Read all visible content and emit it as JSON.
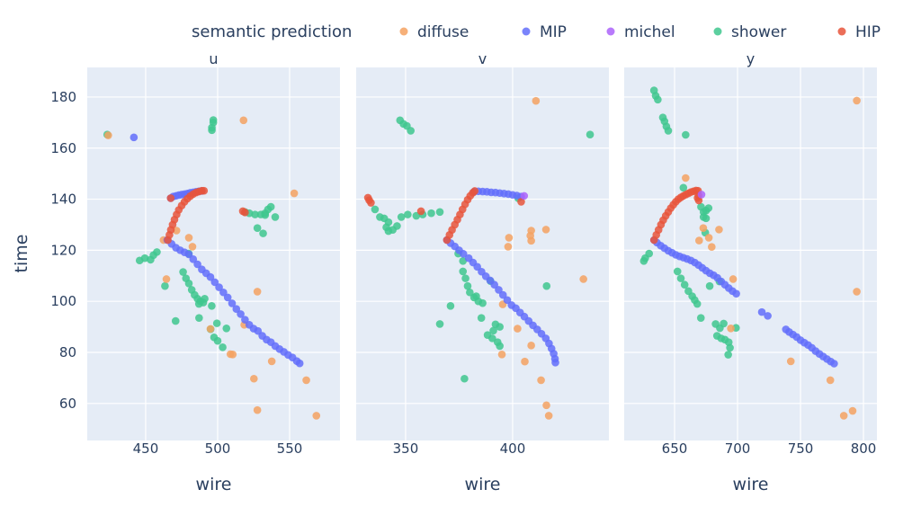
{
  "chart_data": {
    "type": "scatter",
    "legend": {
      "title": "semantic prediction",
      "placement": "top",
      "entries": [
        {
          "name": "diffuse",
          "color": "#F4A261"
        },
        {
          "name": "MIP",
          "color": "#636EFA"
        },
        {
          "name": "michel",
          "color": "#AB63FA"
        },
        {
          "name": "shower",
          "color": "#3FC78E"
        },
        {
          "name": "HIP",
          "color": "#E8553B"
        }
      ]
    },
    "ylabel": "time",
    "ylim": [
      45.5,
      191.6
    ],
    "yticks": [
      60,
      80,
      100,
      120,
      140,
      160,
      180
    ],
    "grid": true,
    "subplots": [
      {
        "title": "u",
        "xlabel": "wire",
        "xlim": [
          409.4,
          585
        ],
        "xticks": [
          450,
          500,
          550
        ],
        "series": {
          "diffuse": {
            "x": [
              424,
              518,
              553.2,
              471.4,
              480,
              482.5,
              462.4,
              464.4,
              495,
              518.5,
              508.9,
              510.5,
              527.6,
              537.6,
              525.2,
              561.6,
              527.6,
              568.6
            ],
            "y": [
              165,
              170.9,
              142.3,
              127.7,
              124.9,
              121.4,
              124,
              108.7,
              89.2,
              90.8,
              79.3,
              79.2,
              103.8,
              76.5,
              69.7,
              69.1,
              57.4,
              55.2
            ]
          },
          "MIP": {
            "x": [
              441.8,
              465,
              468,
              471,
              474,
              477,
              480,
              483,
              486,
              489,
              492,
              495,
              498,
              501,
              504,
              507,
              510,
              513,
              516,
              519,
              522,
              525,
              528,
              531,
              534,
              537,
              540,
              543,
              546,
              549,
              552,
              555,
              557,
              467.4,
              469,
              471,
              473,
              475,
              477,
              479,
              481,
              483,
              485,
              487,
              489
            ],
            "y": [
              164.2,
              124,
              122.5,
              121,
              120,
              119.2,
              118.4,
              116.5,
              114.5,
              112.5,
              111,
              109.5,
              107.5,
              105.5,
              103.5,
              101.5,
              99.2,
              97,
              95,
              92.8,
              90.8,
              89.3,
              88.4,
              86.5,
              85,
              84,
              82.5,
              81.3,
              80.2,
              79,
              78,
              76.6,
              75.7,
              140.4,
              141,
              141.3,
              141.6,
              141.8,
              142,
              142.2,
              142.5,
              142.7,
              142.9,
              143.1,
              143.2
            ]
          },
          "michel": {
            "x": [],
            "y": []
          },
          "shower": {
            "x": [
              423.3,
              497,
              497,
              496,
              496,
              519,
              522,
              526,
              530,
              533,
              535,
              537,
              540,
              533,
              527.6,
              531.6,
              479.9,
              445.8,
              449.4,
              453.4,
              455.4,
              457.8,
              463.4,
              476,
              478,
              480,
              482,
              484,
              486,
              488,
              490,
              491,
              487,
              495.9,
              470.8,
              487.1,
              499.5,
              506.1,
              495.1,
              497.5,
              500,
              503.5
            ],
            "y": [
              165.3,
              171,
              170,
              168,
              167,
              135,
              134.5,
              134,
              134,
              134.5,
              136,
              137,
              133,
              133.8,
              128.7,
              126.6,
              118.7,
              116,
              116.9,
              116.3,
              118.1,
              119.3,
              106,
              111.5,
              109,
              107,
              104.5,
              102.5,
              101,
              100,
              99.5,
              101,
              99,
              98.2,
              92.3,
              93.5,
              91.4,
              89.4,
              89.1,
              85.9,
              84.5,
              82
            ]
          },
          "HIP": {
            "x": [
              465.4,
              466.5,
              467.5,
              468.7,
              470,
              471.5,
              473,
              475,
              477,
              479,
              481,
              483,
              485,
              487,
              489,
              490.5,
              467.4,
              517.5,
              519
            ],
            "y": [
              124,
              126,
              128,
              130,
              132,
              134,
              135.8,
              137.5,
              139,
              140.2,
              141.2,
              142,
              142.6,
              143,
              143.3,
              143.3,
              140.4,
              135.3,
              134.8
            ]
          }
        }
      },
      {
        "title": "v",
        "xlabel": "wire",
        "xlim": [
          326.9,
          445
        ],
        "xticks": [
          350,
          400
        ],
        "series": {
          "diffuse": {
            "x": [
              410.9,
              395.4,
              402.3,
              408.7,
              395,
              405.7,
              413.3,
              415.8,
              416.9,
              398.3,
              397.9,
              408.7,
              408.3,
              408.7,
              415.6,
              433.1
            ],
            "y": [
              178.5,
              98.8,
              89.3,
              82.7,
              79.2,
              76.4,
              69.1,
              59.3,
              55.2,
              124.9,
              121.4,
              127.7,
              125.7,
              123.7,
              128.1,
              108.7
            ]
          },
          "MIP": {
            "x": [
              369.3,
              371,
              373,
              375,
              377,
              379.5,
              381.5,
              383.5,
              385.5,
              387.5,
              389.5,
              391.5,
              393.5,
              395.5,
              397.5,
              399.5,
              401.5,
              403.5,
              405.5,
              407.5,
              409.5,
              411.5,
              413.5,
              415.5,
              417,
              418.2,
              419.2,
              419.8,
              420,
              382,
              384,
              386,
              388,
              390,
              392,
              394,
              396,
              398,
              400,
              402,
              404
            ],
            "y": [
              124,
              122.8,
              121.5,
              120,
              118.6,
              116.9,
              115.2,
              113.5,
              111.6,
              109.8,
              108.2,
              106.5,
              104.5,
              102.5,
              100.5,
              98.5,
              97.3,
              95.6,
              94,
              92.3,
              90.6,
              89,
              87.3,
              85.5,
              83.5,
              81.5,
              79.5,
              77.5,
              76,
              142.9,
              143.1,
              143,
              142.9,
              142.7,
              142.6,
              142.4,
              142.2,
              142,
              141.7,
              141.4,
              141
            ]
          },
          "michel": {
            "x": [
              405.4
            ],
            "y": [
              141.3
            ]
          },
          "shower": {
            "x": [
              347.4,
              349,
              350.6,
              352.4,
              436.2,
              335.7,
              338,
              340,
              342,
              341,
              342,
              344,
              346,
              348,
              351,
              355,
              358,
              362,
              366,
              402.6,
              374.6,
              376.8,
              389.7,
              376.8,
              378,
              379,
              380,
              382,
              384,
              386,
              383,
              371,
              366,
              385.4,
              392,
              394,
              391,
              388.3,
              390.5,
              393,
              394,
              377.5,
              415.9
            ],
            "y": [
              170.9,
              169.5,
              168.7,
              166.8,
              165.3,
              136,
              133,
              132.5,
              131,
              129,
              127.5,
              128,
              129.5,
              133,
              134,
              133.5,
              134,
              134.5,
              135,
              140.4,
              118.7,
              115.8,
              107.9,
              111.7,
              109,
              106,
              103.5,
              101.5,
              100,
              99.3,
              102,
              98.2,
              91.1,
              93.5,
              91,
              90,
              88.5,
              86.8,
              85.5,
              84,
              82.5,
              69.7,
              106
            ]
          },
          "HIP": {
            "x": [
              369.3,
              370.5,
              371.7,
              373,
              374.2,
              375.4,
              376.6,
              377.8,
              379,
              380.2,
              381.4,
              382.3,
              332.4,
              333,
              333.8,
              357.2,
              404
            ],
            "y": [
              124,
              126,
              128,
              130,
              132,
              134,
              136,
              138,
              139.8,
              141.3,
              142.5,
              143.2,
              140.6,
              139.6,
              138.6,
              135.3,
              139
            ]
          }
        }
      },
      {
        "title": "y",
        "xlabel": "wire",
        "xlim": [
          610,
          810.7
        ],
        "xticks": [
          650,
          700,
          750,
          800
        ],
        "series": {
          "diffuse": {
            "x": [
              794.7,
              794.7,
              658.8,
              672.8,
              685.3,
              669.5,
              677.2,
              679.5,
              696.5,
              742.3,
              773.7,
              784.4,
              791.4,
              694.7
            ],
            "y": [
              178.6,
              103.8,
              148.3,
              128.7,
              128.1,
              123.8,
              124.9,
              121.3,
              108.7,
              76.5,
              69.1,
              55.2,
              57.1,
              89.4
            ]
          },
          "MIP": {
            "x": [
              633.7,
              636,
              639,
              642,
              645,
              648,
              651,
              654,
              657,
              660,
              663,
              666,
              669,
              672,
              675,
              678,
              681,
              684,
              687,
              690,
              693,
              696,
              699,
              719.3,
              724,
              738.4,
              741,
              744,
              747,
              750,
              753,
              756,
              759,
              762,
              765,
              768,
              771,
              774,
              776.7
            ],
            "y": [
              124,
              123,
              121.8,
              120.8,
              119.8,
              119,
              118.2,
              117.6,
              117.1,
              116.6,
              116,
              115.2,
              114.2,
              113.1,
              112,
              111,
              110.2,
              109.2,
              107.8,
              106.5,
              105.2,
              104,
              103,
              95.8,
              94.3,
              89,
              88,
              87,
              86,
              84.8,
              83.8,
              82.9,
              81.8,
              80.5,
              79.4,
              78.4,
              77.4,
              76.4,
              75.6
            ]
          },
          "michel": {
            "x": [
              671.4
            ],
            "y": [
              141.8
            ]
          },
          "shower": {
            "x": [
              633.7,
              635,
              636.7,
              640.7,
              642,
              643.5,
              645,
              658.8,
              657,
              671,
              673,
              675,
              677,
              673,
              675,
              674.4,
              626.7,
              629.8,
              625.6,
              652.3,
              655,
              658,
              661,
              664,
              666,
              668,
              670.9,
              677.9,
              685.6,
              682.6,
              686,
              689,
              683.7,
              687,
              690,
              693,
              694,
              692.6,
              698.8
            ],
            "y": [
              182.6,
              180.5,
              179,
              172,
              170.5,
              168.5,
              166.8,
              165.2,
              144.5,
              137,
              135,
              135.5,
              136.5,
              133,
              132.5,
              126.9,
              116.9,
              118.7,
              115.8,
              111.7,
              109,
              106.5,
              104,
              102,
              100.5,
              99,
              93.5,
              106,
              107.8,
              91.1,
              89.5,
              91.3,
              86.5,
              85.5,
              85,
              84,
              81.8,
              79.1,
              89.6
            ]
          },
          "HIP": {
            "x": [
              633.7,
              635.5,
              637.3,
              639.2,
              641,
              643,
              645,
              647,
              649,
              651,
              653,
              655,
              657,
              659,
              661,
              663,
              665,
              667,
              668.6,
              669,
              669.2,
              668.3
            ],
            "y": [
              124,
              126,
              128,
              130,
              131.8,
              133.5,
              135,
              136.5,
              137.8,
              139,
              140,
              140.7,
              141.3,
              141.8,
              142.3,
              142.8,
              143.1,
              143.4,
              143.3,
              141.5,
              139.5,
              140.5
            ]
          }
        }
      }
    ]
  }
}
